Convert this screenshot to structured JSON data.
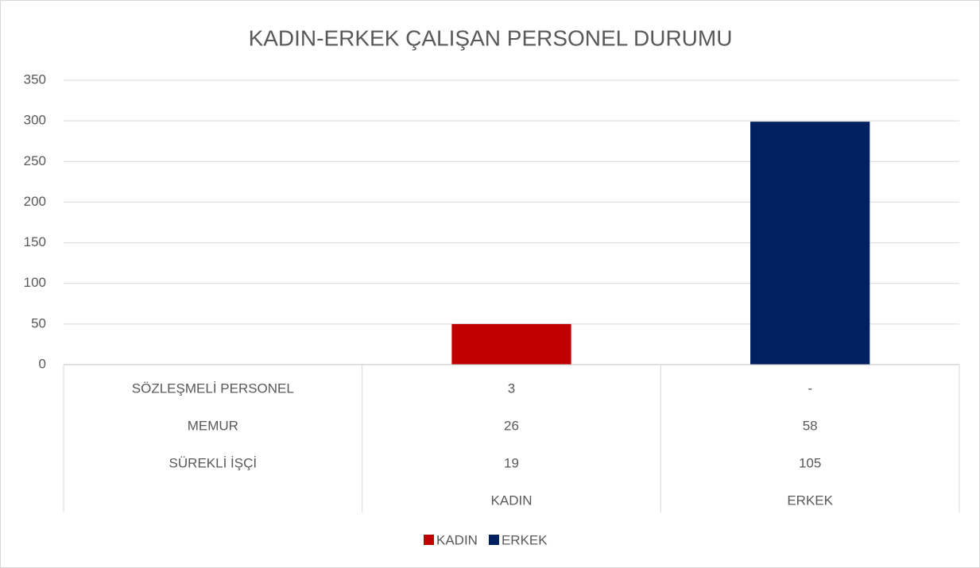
{
  "chart_data": {
    "type": "bar",
    "title": "KADIN-ERKEK ÇALIŞAN PERSONEL DURUMU",
    "categories": [
      null,
      "KADIN",
      "ERKEK"
    ],
    "series": [
      {
        "name": "KADIN",
        "color": "#c00000",
        "values": [
          null,
          50,
          null
        ]
      },
      {
        "name": "ERKEK",
        "color": "#002060",
        "values": [
          null,
          null,
          299
        ]
      }
    ],
    "ylim": [
      0,
      350
    ],
    "yticks": [
      0,
      50,
      100,
      150,
      200,
      250,
      300,
      350
    ],
    "grid": true,
    "data_table": {
      "rows": [
        {
          "name": "SÖZLEŞMELİ PERSONEL",
          "values": [
            3,
            "-"
          ]
        },
        {
          "name": "MEMUR",
          "values": [
            26,
            58
          ]
        },
        {
          "name": "SÜREKLİ İŞÇİ",
          "values": [
            19,
            105
          ]
        }
      ]
    },
    "legend": "bottom"
  }
}
